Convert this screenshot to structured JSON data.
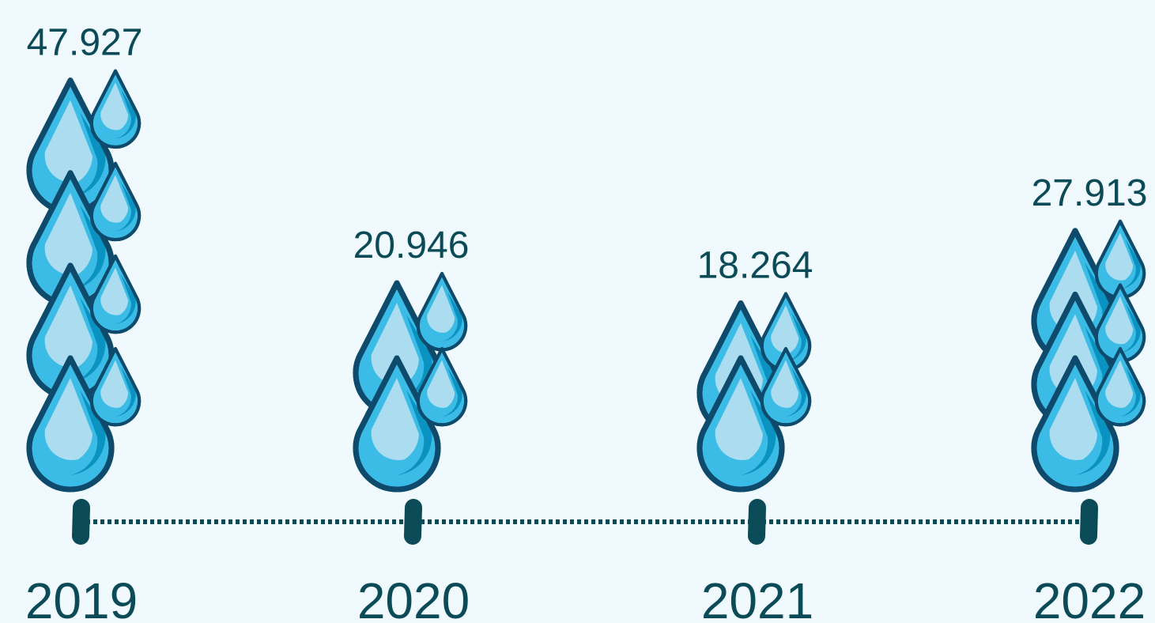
{
  "chart_data": {
    "type": "pictogram",
    "categories": [
      "2019",
      "2020",
      "2021",
      "2022"
    ],
    "values": [
      47.927,
      20.946,
      18.264,
      27.913
    ],
    "color": "#3bbce6"
  }
}
